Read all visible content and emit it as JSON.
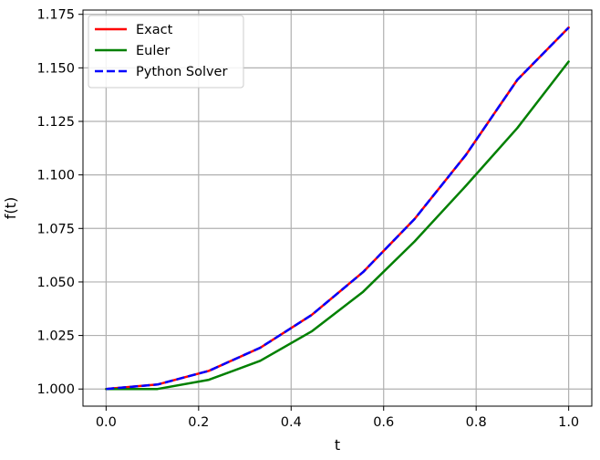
{
  "chart_data": {
    "type": "line",
    "title": "",
    "xlabel": "t",
    "ylabel": "f(t)",
    "xlim": [
      -0.05,
      1.05
    ],
    "ylim": [
      0.992,
      1.177
    ],
    "xticks": [
      0.0,
      0.2,
      0.4,
      0.6,
      0.8,
      1.0
    ],
    "xtick_labels": [
      "0.0",
      "0.2",
      "0.4",
      "0.6",
      "0.8",
      "1.0"
    ],
    "yticks": [
      1.0,
      1.025,
      1.05,
      1.075,
      1.1,
      1.125,
      1.15,
      1.175
    ],
    "ytick_labels": [
      "1.000",
      "1.025",
      "1.050",
      "1.075",
      "1.100",
      "1.125",
      "1.150",
      "1.175"
    ],
    "grid": true,
    "legend_position": "top-left",
    "series": [
      {
        "name": "Exact",
        "color": "#ff0000",
        "style": "solid",
        "x": [
          0.0,
          0.1111,
          0.2222,
          0.3333,
          0.4444,
          0.5556,
          0.6667,
          0.7778,
          0.8889,
          1.0
        ],
        "values": [
          1.0,
          1.0021,
          1.0085,
          1.0193,
          1.0346,
          1.0546,
          1.0794,
          1.1093,
          1.1444,
          1.1688
        ]
      },
      {
        "name": "Euler",
        "color": "#008000",
        "style": "solid",
        "x": [
          0.0,
          0.1111,
          0.2222,
          0.3333,
          0.4444,
          0.5556,
          0.6667,
          0.7778,
          0.8889,
          1.0
        ],
        "values": [
          1.0,
          1.0,
          1.0043,
          1.0132,
          1.0269,
          1.0454,
          1.0689,
          1.0949,
          1.1219,
          1.1529
        ]
      },
      {
        "name": "Python Solver",
        "color": "#0000ff",
        "style": "dashed",
        "x": [
          0.0,
          0.1111,
          0.2222,
          0.3333,
          0.4444,
          0.5556,
          0.6667,
          0.7778,
          0.8889,
          1.0
        ],
        "values": [
          1.0,
          1.0021,
          1.0085,
          1.0193,
          1.0346,
          1.0546,
          1.0794,
          1.1093,
          1.1444,
          1.1688
        ]
      }
    ]
  }
}
